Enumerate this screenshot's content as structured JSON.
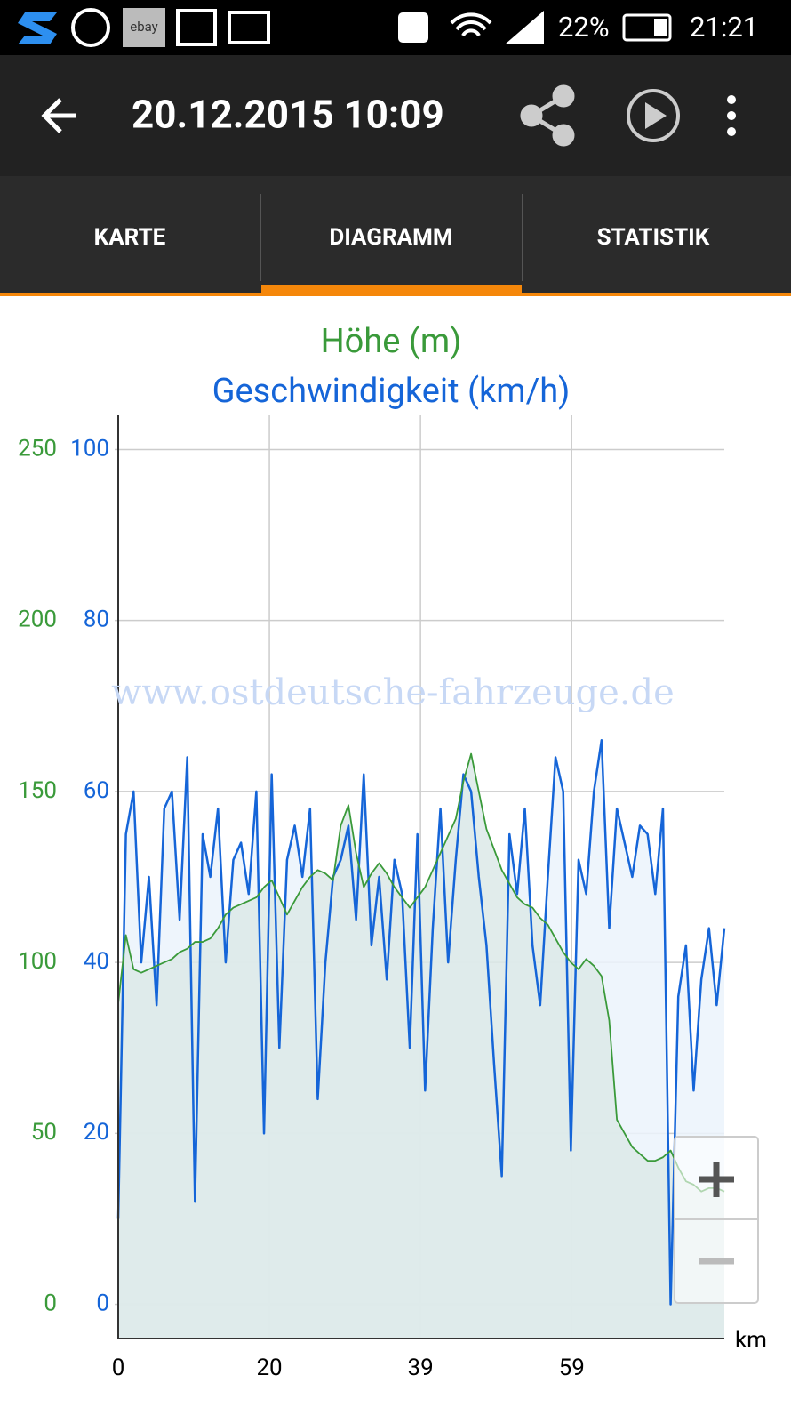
{
  "status": {
    "app_icon_label": "ebay",
    "battery": "22%",
    "time": "21:21"
  },
  "header": {
    "title": "20.12.2015 10:09"
  },
  "tabs": [
    "KARTE",
    "DIAGRAMM",
    "STATISTIK"
  ],
  "chart_data": {
    "type": "line",
    "title": "Höhe (m)",
    "subtitle": "Geschwindigkeit (km/h)",
    "xlabel": "km",
    "annotation": "www.ostdeutsche-fahrzeuge.de",
    "x": [
      0,
      1,
      2,
      3,
      4,
      5,
      6,
      7,
      8,
      9,
      10,
      11,
      12,
      13,
      14,
      15,
      16,
      17,
      18,
      19,
      20,
      21,
      22,
      23,
      24,
      25,
      26,
      27,
      28,
      29,
      30,
      31,
      32,
      33,
      34,
      35,
      36,
      37,
      38,
      39,
      40,
      41,
      42,
      43,
      44,
      45,
      46,
      47,
      48,
      49,
      50,
      51,
      52,
      53,
      54,
      55,
      56,
      57,
      58,
      59,
      60,
      61,
      62,
      63,
      64,
      65,
      66,
      67,
      68,
      69,
      70,
      71,
      72,
      73,
      74,
      75,
      76,
      77,
      78,
      79
    ],
    "xlim": [
      0,
      79
    ],
    "xticks": [
      0,
      {
        "value": 19.7,
        "label": "20"
      },
      {
        "value": 39.4,
        "label": "39"
      },
      {
        "value": 59.1,
        "label": "59"
      }
    ],
    "ylim": [
      -10,
      260
    ],
    "yticks": [
      0,
      50,
      100,
      150,
      200,
      250
    ],
    "y2lim": [
      -4,
      104
    ],
    "y2ticks": [
      0,
      20,
      40,
      60,
      80,
      100
    ],
    "grid": true,
    "series": [
      {
        "name": "Höhe (m)",
        "color": "#3a9a3a",
        "fill": "#dce9e7",
        "values": [
          88,
          108,
          98,
          97,
          98,
          99,
          100,
          101,
          103,
          104,
          106,
          106,
          107,
          110,
          114,
          116,
          117,
          118,
          119,
          122,
          124,
          119,
          114,
          118,
          122,
          125,
          127,
          126,
          124,
          140,
          146,
          132,
          122,
          126,
          129,
          126,
          122,
          119,
          116,
          119,
          122,
          127,
          132,
          137,
          142,
          153,
          161,
          150,
          139,
          133,
          127,
          123,
          119,
          117,
          116,
          113,
          111,
          107,
          103,
          100,
          98,
          101,
          99,
          96,
          83,
          54,
          50,
          46,
          44,
          42,
          42,
          43,
          45,
          40,
          36,
          35,
          33,
          34,
          34,
          33
        ]
      },
      {
        "name": "Geschwindigkeit (km/h)",
        "color": "#1565d8",
        "fill": "#ebf3fc",
        "axis": "y2",
        "values": [
          10,
          55,
          60,
          40,
          50,
          35,
          58,
          60,
          45,
          64,
          12,
          55,
          50,
          58,
          40,
          52,
          54,
          48,
          60,
          20,
          62,
          30,
          52,
          56,
          50,
          58,
          24,
          40,
          50,
          52,
          56,
          45,
          62,
          42,
          50,
          38,
          52,
          48,
          30,
          55,
          25,
          44,
          58,
          40,
          52,
          62,
          60,
          50,
          42,
          28,
          15,
          55,
          48,
          58,
          42,
          35,
          50,
          64,
          60,
          18,
          52,
          48,
          60,
          66,
          44,
          58,
          54,
          50,
          56,
          55,
          48,
          58,
          0,
          36,
          42,
          25,
          38,
          44,
          35,
          44
        ]
      }
    ]
  }
}
